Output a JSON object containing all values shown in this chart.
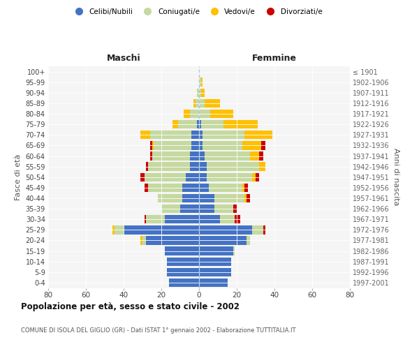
{
  "age_groups": [
    "0-4",
    "5-9",
    "10-14",
    "15-19",
    "20-24",
    "25-29",
    "30-34",
    "35-39",
    "40-44",
    "45-49",
    "50-54",
    "55-59",
    "60-64",
    "65-69",
    "70-74",
    "75-79",
    "80-84",
    "85-89",
    "90-94",
    "95-99",
    "100+"
  ],
  "birth_years": [
    "1997-2001",
    "1992-1996",
    "1987-1991",
    "1982-1986",
    "1977-1981",
    "1972-1976",
    "1967-1971",
    "1962-1966",
    "1957-1961",
    "1952-1956",
    "1947-1951",
    "1942-1946",
    "1937-1941",
    "1932-1936",
    "1927-1931",
    "1922-1926",
    "1917-1921",
    "1912-1916",
    "1907-1911",
    "1902-1906",
    "≤ 1901"
  ],
  "maschi": {
    "celibi": [
      16,
      17,
      17,
      18,
      28,
      40,
      18,
      10,
      9,
      9,
      7,
      5,
      5,
      4,
      4,
      1,
      0,
      0,
      0,
      0,
      0
    ],
    "coniugati": [
      0,
      0,
      0,
      0,
      2,
      5,
      10,
      10,
      13,
      18,
      22,
      22,
      20,
      20,
      22,
      10,
      5,
      2,
      1,
      0,
      0
    ],
    "vedovi": [
      0,
      0,
      0,
      0,
      1,
      1,
      0,
      0,
      0,
      0,
      0,
      0,
      0,
      1,
      5,
      3,
      3,
      1,
      0,
      0,
      0
    ],
    "divorziati": [
      0,
      0,
      0,
      0,
      0,
      0,
      1,
      0,
      0,
      2,
      2,
      1,
      1,
      1,
      0,
      0,
      0,
      0,
      0,
      0,
      0
    ]
  },
  "femmine": {
    "nubili": [
      15,
      17,
      17,
      18,
      25,
      28,
      11,
      8,
      8,
      5,
      4,
      4,
      3,
      2,
      2,
      1,
      0,
      0,
      0,
      0,
      0
    ],
    "coniugate": [
      0,
      0,
      0,
      1,
      2,
      6,
      8,
      10,
      16,
      18,
      24,
      28,
      24,
      21,
      22,
      12,
      6,
      3,
      1,
      1,
      0
    ],
    "vedove": [
      0,
      0,
      0,
      0,
      0,
      0,
      0,
      0,
      1,
      1,
      2,
      3,
      5,
      10,
      15,
      18,
      12,
      8,
      2,
      1,
      0
    ],
    "divorziate": [
      0,
      0,
      0,
      0,
      0,
      1,
      3,
      2,
      2,
      2,
      2,
      0,
      2,
      2,
      0,
      0,
      0,
      0,
      0,
      0,
      0
    ]
  },
  "colors": {
    "celibi": "#4472c4",
    "coniugati": "#c5d9a0",
    "vedovi": "#ffc000",
    "divorziati": "#cc0000"
  },
  "xlim": 80,
  "title": "Popolazione per età, sesso e stato civile - 2002",
  "subtitle": "COMUNE DI ISOLA DEL GIGLIO (GR) - Dati ISTAT 1° gennaio 2002 - Elaborazione TUTTITALIA.IT",
  "xlabel_left": "Maschi",
  "xlabel_right": "Femmine",
  "ylabel_left": "Fasce di età",
  "ylabel_right": "Anni di nascita",
  "legend_labels": [
    "Celibi/Nubili",
    "Coniugati/e",
    "Vedovi/e",
    "Divorziati/e"
  ],
  "bg_color": "#f5f5f5"
}
